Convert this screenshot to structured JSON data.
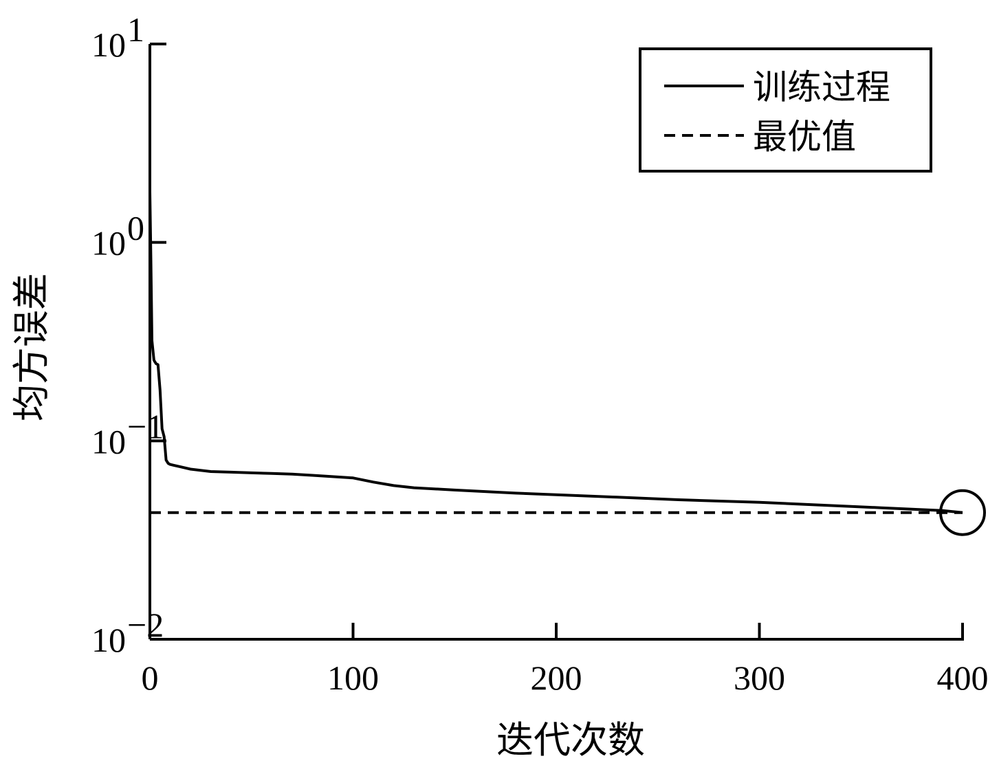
{
  "chart_data": {
    "type": "line",
    "title": "",
    "xlabel": "迭代次数",
    "ylabel": "均方误差",
    "x_scale": "linear",
    "y_scale": "log",
    "xlim": [
      0,
      400
    ],
    "ylim": [
      0.01,
      10
    ],
    "x_ticks": [
      0,
      100,
      200,
      300,
      400
    ],
    "x_tick_labels": [
      "0",
      "100",
      "200",
      "300",
      "400"
    ],
    "y_ticks": [
      {
        "value": 10,
        "base": "10",
        "exp": "1"
      },
      {
        "value": 1,
        "base": "10",
        "exp": "0"
      },
      {
        "value": 0.1,
        "base": "10",
        "exp": "−1"
      },
      {
        "value": 0.01,
        "base": "10",
        "exp": "−2"
      }
    ],
    "grid": false,
    "legend_position": "top-right",
    "series": [
      {
        "name": "训练过程",
        "style": "solid",
        "color": "#000000",
        "x": [
          0,
          0.5,
          1,
          2,
          3,
          4,
          5,
          6,
          7,
          8,
          9,
          10,
          15,
          20,
          30,
          40,
          50,
          60,
          70,
          80,
          90,
          100,
          110,
          120,
          130,
          150,
          180,
          200,
          230,
          260,
          300,
          330,
          360,
          390,
          400
        ],
        "y": [
          1.8,
          0.8,
          0.32,
          0.255,
          0.245,
          0.242,
          0.18,
          0.115,
          0.105,
          0.08,
          0.077,
          0.076,
          0.074,
          0.072,
          0.07,
          0.0695,
          0.069,
          0.0685,
          0.068,
          0.067,
          0.066,
          0.065,
          0.062,
          0.0595,
          0.058,
          0.0565,
          0.0545,
          0.0535,
          0.052,
          0.0505,
          0.049,
          0.0475,
          0.046,
          0.0445,
          0.0435
        ]
      },
      {
        "name": "最优值",
        "style": "dashed",
        "color": "#000000",
        "x": [
          0,
          400
        ],
        "y": [
          0.0435,
          0.0435
        ]
      }
    ],
    "annotations": [
      {
        "type": "circle-marker",
        "x": 400,
        "y": 0.0435
      }
    ]
  }
}
